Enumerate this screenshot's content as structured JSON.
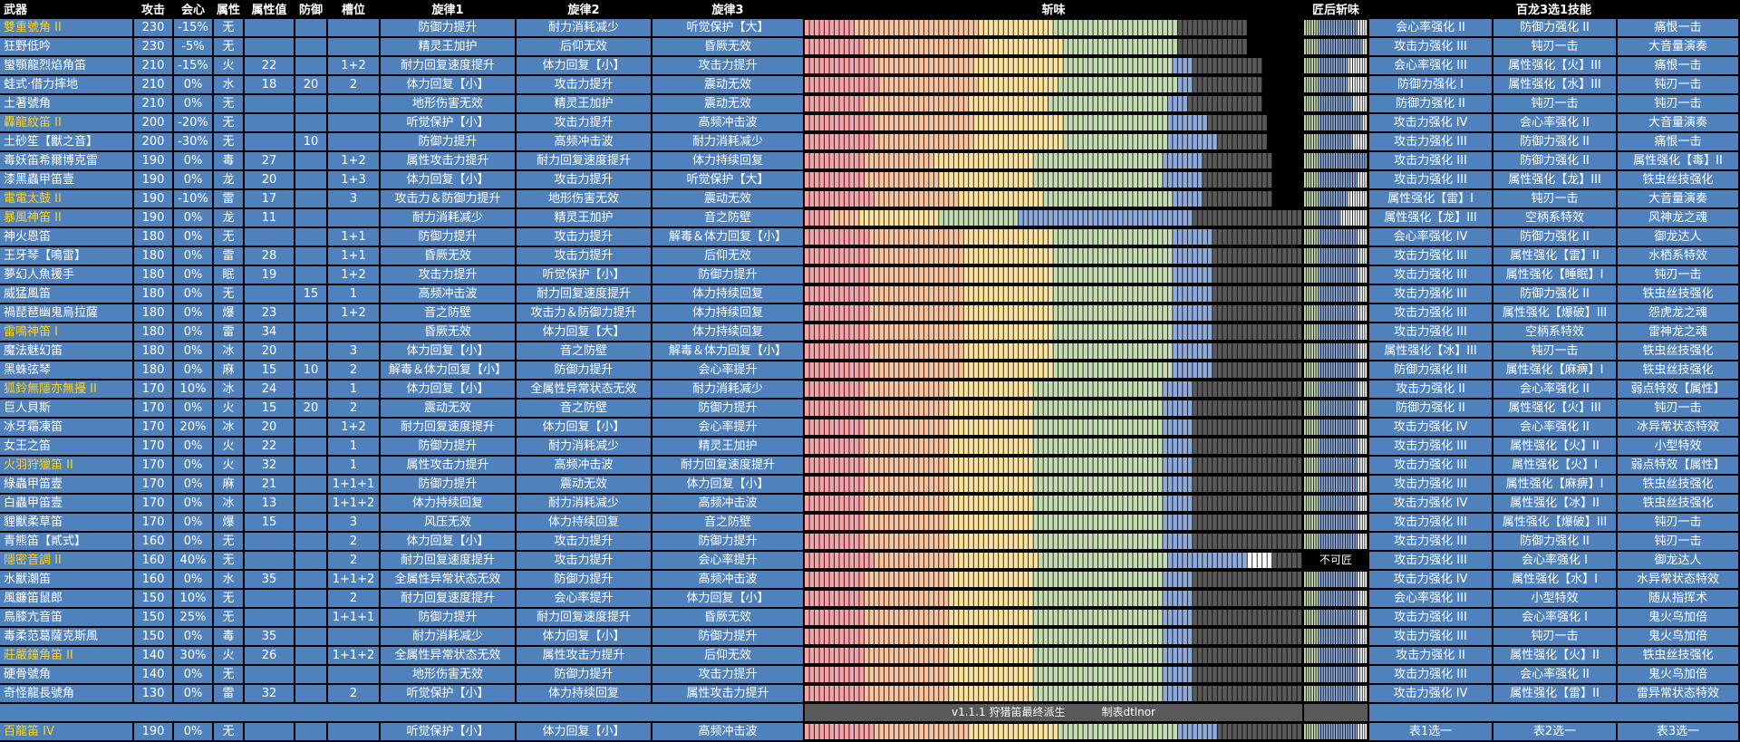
{
  "headers": {
    "weapon": "武器",
    "attack": "攻击",
    "affinity": "会心",
    "element": "属性",
    "element_value": "属性值",
    "defense": "防御",
    "slots": "槽位",
    "melody1": "旋律1",
    "melody2": "旋律2",
    "melody3": "旋律3",
    "sharpness": "斩味",
    "post_sharpness": "匠后斩味",
    "rampage": "百龙3选1技能"
  },
  "colors": {
    "cell_bg": "#4f81bd",
    "gold_name": "#ffd21f",
    "sharp_red": "#f4a3a8",
    "sharp_orange": "#f8c39f",
    "sharp_yellow": "#fbe29f",
    "sharp_green": "#c5dbb1",
    "sharp_blue": "#8eaadb",
    "sharp_white": "#ffffff",
    "sharp_empty": "#595959"
  },
  "rows": [
    {
      "name": "雙重號角 II",
      "gold": true,
      "atk": "230",
      "aff": "-15%",
      "ele": "无",
      "ev": "",
      "def": "",
      "slots": "",
      "m1": "防御力提升",
      "m2": "耐力消耗减少",
      "m3": "听觉保护【大】",
      "sharp": [
        10,
        25,
        15,
        25,
        0,
        0,
        14
      ],
      "post": "0.14,0.12,0,0,0,0",
      "r1": "会心率强化 II",
      "r2": "防御力强化 II",
      "r3": "痛恨一击"
    },
    {
      "name": "狂野低吟",
      "gold": false,
      "atk": "230",
      "aff": "-5%",
      "ele": "无",
      "ev": "",
      "def": "",
      "slots": "",
      "m1": "精灵王加护",
      "m2": "后仰无效",
      "m3": "昏厥无效",
      "sharp": [
        12,
        24,
        16,
        23,
        0,
        0,
        14
      ],
      "post": "0.15,0.11,0,0,0,0",
      "r1": "攻击力强化 III",
      "r2": "钝刃一击",
      "r3": "大音量演奏"
    },
    {
      "name": "蠻顎龍烈焰角笛",
      "gold": false,
      "atk": "210",
      "aff": "-15%",
      "ele": "火",
      "ev": "22",
      "def": "",
      "slots": "1+2",
      "m1": "耐力回复速度提升",
      "m2": "体力回复【小】",
      "m3": "攻击力提升",
      "sharp": [
        14,
        20,
        18,
        22,
        4,
        0,
        14
      ],
      "post": "0.10,0.14,0,0,0,0",
      "r1": "会心率强化 III",
      "r2": "属性强化【火】III",
      "r3": "痛恨一击"
    },
    {
      "name": "蛙式·借力摔地",
      "gold": false,
      "atk": "210",
      "aff": "0%",
      "ele": "水",
      "ev": "18",
      "def": "20",
      "slots": "2",
      "m1": "体力回复【小】",
      "m2": "攻击力提升",
      "m3": "震动无效",
      "sharp": [
        15,
        20,
        16,
        24,
        3,
        0,
        14
      ],
      "post": "0.10,0.14,0,0,0,0",
      "r1": "防御力强化 I",
      "r2": "属性强化【水】III",
      "r3": "钝刃一击"
    },
    {
      "name": "土著號角",
      "gold": false,
      "atk": "210",
      "aff": "0%",
      "ele": "无",
      "ev": "",
      "def": "",
      "slots": "",
      "m1": "地形伤害无效",
      "m2": "精灵王加护",
      "m3": "震动无效",
      "sharp": [
        12,
        21,
        16,
        24,
        4,
        0,
        15
      ],
      "post": "0.12,0.12,0,0,0,0",
      "r1": "防御力强化 II",
      "r2": "钝刃一击",
      "r3": "钝刃一击"
    },
    {
      "name": "轟龍紋笛 II",
      "gold": true,
      "atk": "200",
      "aff": "-20%",
      "ele": "无",
      "ev": "",
      "def": "",
      "slots": "",
      "m1": "听觉保护【小】",
      "m2": "攻击力提升",
      "m3": "高频冲击波",
      "sharp": [
        14,
        20,
        18,
        21,
        8,
        0,
        12
      ],
      "post": "0.15,0.11,0,0,0,0",
      "r1": "攻击力强化 IV",
      "r2": "会心率强化 II",
      "r3": "大音量演奏"
    },
    {
      "name": "土砂笙【獸之音】",
      "gold": false,
      "atk": "200",
      "aff": "-30%",
      "ele": "无",
      "ev": "",
      "def": "10",
      "slots": "",
      "m1": "防御力提升",
      "m2": "高频冲击波",
      "m3": "耐力消耗减少",
      "sharp": [
        14,
        20,
        18,
        21,
        10,
        0,
        10
      ],
      "post": "0.12,0.12,0,0,0,0",
      "r1": "攻击力强化 III",
      "r2": "防御力强化 II",
      "r3": "痛恨一击"
    },
    {
      "name": "毒妖笛希爾博克雷",
      "gold": false,
      "atk": "190",
      "aff": "0%",
      "ele": "毒",
      "ev": "27",
      "def": "",
      "slots": "1+2",
      "m1": "属性攻击力提升",
      "m2": "耐力回复速度提升",
      "m3": "体力持续回复",
      "sharp": [
        12,
        14,
        20,
        26,
        8,
        0,
        14
      ],
      "post": "0.17,0.09,0,0,0,0",
      "r1": "攻击力强化 III",
      "r2": "防御力强化 II",
      "r3": "属性强化【毒】II"
    },
    {
      "name": "漆黑蟲甲笛壹",
      "gold": false,
      "atk": "190",
      "aff": "0%",
      "ele": "龙",
      "ev": "20",
      "def": "",
      "slots": "1+3",
      "m1": "体力回复【小】",
      "m2": "攻击力提升",
      "m3": "听觉保护【大】",
      "sharp": [
        12,
        15,
        19,
        26,
        8,
        0,
        14
      ],
      "post": "0.14,0.12,0,0,0,0",
      "r1": "攻击力强化 III",
      "r2": "属性强化【龙】III",
      "r3": "铁虫丝技强化"
    },
    {
      "name": "電電太鼓 II",
      "gold": true,
      "atk": "190",
      "aff": "-10%",
      "ele": "雷",
      "ev": "17",
      "def": "",
      "slots": "3",
      "m1": "攻击力＆防御力提升",
      "m2": "地形伤害无效",
      "m3": "震动无效",
      "sharp": [
        14,
        17,
        17,
        26,
        6,
        0,
        14
      ],
      "post": "0.10,0.14,0,0,0,0",
      "r1": "属性强化【雷】I",
      "r2": "钝刃一击",
      "r3": "大音量演奏"
    },
    {
      "name": "暴風神笛 II",
      "gold": true,
      "atk": "190",
      "aff": "0%",
      "ele": "龙",
      "ev": "11",
      "def": "",
      "slots": "",
      "m1": "耐力消耗减少",
      "m2": "精灵王加护",
      "m3": "音之防壁",
      "sharp": [
        5,
        6,
        16,
        16,
        35,
        0,
        22
      ],
      "post": "0.08,0.16,0,0,0,0",
      "r1": "属性强化【龙】III",
      "r2": "空柄系特效",
      "r3": "风神龙之魂"
    },
    {
      "name": "神火恩笛",
      "gold": false,
      "atk": "180",
      "aff": "0%",
      "ele": "无",
      "ev": "",
      "def": "",
      "slots": "1+1",
      "m1": "防御力提升",
      "m2": "攻击力提升",
      "m3": "解毒＆体力回复【小】",
      "sharp": [
        13,
        19,
        18,
        24,
        8,
        0,
        18
      ],
      "post": "0.14,0.12,0,0,0,0",
      "r1": "会心率强化 IV",
      "r2": "防御力强化 II",
      "r3": "御龙达人"
    },
    {
      "name": "王牙琴【鳴雷】",
      "gold": false,
      "atk": "180",
      "aff": "0%",
      "ele": "雷",
      "ev": "28",
      "def": "",
      "slots": "1+1",
      "m1": "昏厥无效",
      "m2": "攻击力提升",
      "m3": "后仰无效",
      "sharp": [
        13,
        19,
        18,
        24,
        8,
        0,
        18
      ],
      "post": "0.14,0.12,0,0,0,0",
      "r1": "攻击力强化 III",
      "r2": "属性强化【雷】II",
      "r3": "水栖系特效"
    },
    {
      "name": "夢幻人魚援手",
      "gold": false,
      "atk": "180",
      "aff": "0%",
      "ele": "眠",
      "ev": "19",
      "def": "",
      "slots": "1+2",
      "m1": "攻击力提升",
      "m2": "听觉保护【小】",
      "m3": "防御力提升",
      "sharp": [
        13,
        19,
        18,
        24,
        8,
        0,
        18
      ],
      "post": "0.14,0.12,0,0,0,0",
      "r1": "攻击力强化 III",
      "r2": "属性强化【睡眠】I",
      "r3": "钝刃一击"
    },
    {
      "name": "威猛風笛",
      "gold": false,
      "atk": "180",
      "aff": "0%",
      "ele": "无",
      "ev": "",
      "def": "15",
      "slots": "1",
      "m1": "高频冲击波",
      "m2": "耐力回复速度提升",
      "m3": "体力持续回复",
      "sharp": [
        13,
        19,
        18,
        24,
        8,
        0,
        18
      ],
      "post": "0.14,0.12,0,0,0,0",
      "r1": "攻击力强化 III",
      "r2": "防御力强化 II",
      "r3": "铁虫丝技强化"
    },
    {
      "name": "禍琵琶幽鬼烏拉薩",
      "gold": false,
      "atk": "180",
      "aff": "0%",
      "ele": "爆",
      "ev": "23",
      "def": "",
      "slots": "1+2",
      "m1": "音之防壁",
      "m2": "攻击力＆防御力提升",
      "m3": "体力持续回复",
      "sharp": [
        13,
        19,
        18,
        24,
        8,
        0,
        18
      ],
      "post": "0.14,0.12,0,0,0,0",
      "r1": "攻击力强化 III",
      "r2": "属性强化【爆破】III",
      "r3": "怨虎龙之魂"
    },
    {
      "name": "雷鳴神笛 I",
      "gold": true,
      "atk": "180",
      "aff": "0%",
      "ele": "雷",
      "ev": "34",
      "def": "",
      "slots": "",
      "m1": "昏厥无效",
      "m2": "体力回复【大】",
      "m3": "体力持续回复",
      "sharp": [
        13,
        19,
        18,
        24,
        8,
        0,
        18
      ],
      "post": "0.14,0.12,0,0,0,0",
      "r1": "攻击力强化 III",
      "r2": "空柄系特效",
      "r3": "雷神龙之魂"
    },
    {
      "name": "魔法魅幻笛",
      "gold": false,
      "atk": "180",
      "aff": "0%",
      "ele": "冰",
      "ev": "20",
      "def": "",
      "slots": "3",
      "m1": "体力回复【小】",
      "m2": "音之防壁",
      "m3": "解毒＆体力回复【小】",
      "sharp": [
        13,
        19,
        18,
        24,
        8,
        0,
        18
      ],
      "post": "0.14,0.12,0,0,0,0",
      "r1": "属性强化【冰】III",
      "r2": "钝刃一击",
      "r3": "铁虫丝技强化"
    },
    {
      "name": "黑蛛弦琴",
      "gold": false,
      "atk": "180",
      "aff": "0%",
      "ele": "麻",
      "ev": "15",
      "def": "10",
      "slots": "2",
      "m1": "解毒＆体力回复【小】",
      "m2": "防御力提升",
      "m3": "会心率提升",
      "sharp": [
        13,
        19,
        18,
        24,
        8,
        0,
        18
      ],
      "post": "0.14,0.12,0,0,0,0",
      "r1": "防御力强化 III",
      "r2": "属性强化【麻痹】I",
      "r3": "铁虫丝技强化"
    },
    {
      "name": "狐鈴無隱亦無擾 II",
      "gold": true,
      "atk": "170",
      "aff": "10%",
      "ele": "冰",
      "ev": "24",
      "def": "",
      "slots": "1",
      "m1": "体力回复【小】",
      "m2": "全属性异常状态无效",
      "m3": "耐力消耗减少",
      "sharp": [
        12,
        17,
        17,
        26,
        6,
        0,
        22
      ],
      "post": "0.14,0.12,0,0,0,0",
      "r1": "攻击力强化 II",
      "r2": "会心率强化 II",
      "r3": "弱点特效【属性】"
    },
    {
      "name": "巨人貝斯",
      "gold": false,
      "atk": "170",
      "aff": "0%",
      "ele": "火",
      "ev": "15",
      "def": "20",
      "slots": "2",
      "m1": "震动无效",
      "m2": "音之防壁",
      "m3": "防御力提升",
      "sharp": [
        12,
        17,
        17,
        26,
        6,
        0,
        22
      ],
      "post": "0.14,0.12,0,0,0,0",
      "r1": "防御力强化 II",
      "r2": "属性强化【火】III",
      "r3": "钝刃一击"
    },
    {
      "name": "冰牙霜凍笛",
      "gold": false,
      "atk": "170",
      "aff": "20%",
      "ele": "冰",
      "ev": "20",
      "def": "",
      "slots": "1+2",
      "m1": "耐力回复速度提升",
      "m2": "体力回复【小】",
      "m3": "会心率提升",
      "sharp": [
        12,
        17,
        17,
        26,
        6,
        0,
        22
      ],
      "post": "0.14,0.12,0,0,0,0",
      "r1": "攻击力强化 IV",
      "r2": "会心率强化 II",
      "r3": "冰异常状态特效"
    },
    {
      "name": "女王之笛",
      "gold": false,
      "atk": "170",
      "aff": "0%",
      "ele": "火",
      "ev": "22",
      "def": "",
      "slots": "1",
      "m1": "防御力提升",
      "m2": "耐力消耗减少",
      "m3": "精灵王加护",
      "sharp": [
        12,
        17,
        17,
        26,
        6,
        0,
        22
      ],
      "post": "0.14,0.12,0,0,0,0",
      "r1": "攻击力强化 III",
      "r2": "属性强化【火】II",
      "r3": "小型特效"
    },
    {
      "name": "火羽狩獵笛 II",
      "gold": true,
      "atk": "170",
      "aff": "0%",
      "ele": "火",
      "ev": "32",
      "def": "",
      "slots": "1",
      "m1": "属性攻击力提升",
      "m2": "高频冲击波",
      "m3": "耐力回复速度提升",
      "sharp": [
        12,
        17,
        17,
        26,
        6,
        0,
        22
      ],
      "post": "0.14,0.12,0,0,0,0",
      "r1": "攻击力强化 III",
      "r2": "属性强化【火】I",
      "r3": "弱点特效【属性】"
    },
    {
      "name": "綠蟲甲笛壹",
      "gold": false,
      "atk": "170",
      "aff": "0%",
      "ele": "麻",
      "ev": "21",
      "def": "",
      "slots": "1+1+1",
      "m1": "防御力提升",
      "m2": "震动无效",
      "m3": "体力回复【小】",
      "sharp": [
        12,
        17,
        17,
        26,
        6,
        0,
        22
      ],
      "post": "0.14,0.12,0,0,0,0",
      "r1": "攻击力强化 III",
      "r2": "属性强化【麻痹】I",
      "r3": "铁虫丝技强化"
    },
    {
      "name": "白蟲甲笛壹",
      "gold": false,
      "atk": "170",
      "aff": "0%",
      "ele": "冰",
      "ev": "13",
      "def": "",
      "slots": "1+1+2",
      "m1": "体力持续回复",
      "m2": "耐力消耗减少",
      "m3": "高频冲击波",
      "sharp": [
        12,
        17,
        17,
        26,
        6,
        0,
        22
      ],
      "post": "0.14,0.12,0,0,0,0",
      "r1": "攻击力强化 IV",
      "r2": "属性强化【冰】II",
      "r3": "铁虫丝技强化"
    },
    {
      "name": "貍獸柔草笛",
      "gold": false,
      "atk": "170",
      "aff": "0%",
      "ele": "爆",
      "ev": "15",
      "def": "",
      "slots": "3",
      "m1": "风压无效",
      "m2": "体力持续回复",
      "m3": "音之防壁",
      "sharp": [
        12,
        17,
        17,
        26,
        6,
        0,
        22
      ],
      "post": "0.14,0.12,0,0,0,0",
      "r1": "攻击力强化 III",
      "r2": "属性强化【爆破】III",
      "r3": "钝刃一击"
    },
    {
      "name": "青熊笛【貳式】",
      "gold": false,
      "atk": "160",
      "aff": "0%",
      "ele": "无",
      "ev": "",
      "def": "",
      "slots": "2",
      "m1": "体力回复【小】",
      "m2": "攻击力提升",
      "m3": "防御力提升",
      "sharp": [
        12,
        17,
        17,
        26,
        6,
        0,
        22
      ],
      "post": "0.14,0.12,0,0,0,0",
      "r1": "攻击力强化 III",
      "r2": "防御力强化 II",
      "r3": "钝刃一击"
    },
    {
      "name": "隱密音調 II",
      "gold": true,
      "atk": "160",
      "aff": "40%",
      "ele": "无",
      "ev": "",
      "def": "",
      "slots": "2",
      "m1": "耐力回复速度提升",
      "m2": "攻击力提升",
      "m3": "会心率提升",
      "sharp": [
        14,
        16,
        17,
        26,
        16,
        5,
        6
      ],
      "post": "nocraft",
      "r1": "攻击力强化 III",
      "r2": "会心率强化 I",
      "r3": "御龙达人"
    },
    {
      "name": "水獸潮笛",
      "gold": false,
      "atk": "160",
      "aff": "0%",
      "ele": "水",
      "ev": "35",
      "def": "",
      "slots": "1+1+2",
      "m1": "全属性异常状态无效",
      "m2": "防御力提升",
      "m3": "高频冲击波",
      "sharp": [
        12,
        17,
        17,
        26,
        6,
        0,
        22
      ],
      "post": "0.14,0.12,0,0,0,0",
      "r1": "攻击力强化 IV",
      "r2": "属性强化【水】I",
      "r3": "水异常状态特效"
    },
    {
      "name": "風鐮笛鼠郎",
      "gold": false,
      "atk": "150",
      "aff": "10%",
      "ele": "无",
      "ev": "",
      "def": "",
      "slots": "2",
      "m1": "耐力回复速度提升",
      "m2": "会心率提升",
      "m3": "体力回复【小】",
      "sharp": [
        12,
        17,
        17,
        26,
        6,
        0,
        22
      ],
      "post": "0.14,0.12,0,0,0,0",
      "r1": "会心率强化 III",
      "r2": "小型特效",
      "r3": "随从指挥术"
    },
    {
      "name": "鳥膝亢音笛",
      "gold": false,
      "atk": "150",
      "aff": "25%",
      "ele": "无",
      "ev": "",
      "def": "",
      "slots": "1+1+1",
      "m1": "防御力提升",
      "m2": "耐力回复速度提升",
      "m3": "昏厥无效",
      "sharp": [
        12,
        17,
        17,
        26,
        6,
        0,
        22
      ],
      "post": "0.14,0.12,0,0,0,0",
      "r1": "攻击力强化 III",
      "r2": "会心率强化 I",
      "r3": "鬼火鸟加倍"
    },
    {
      "name": "毒柔范葛薩克斯風",
      "gold": false,
      "atk": "150",
      "aff": "0%",
      "ele": "毒",
      "ev": "35",
      "def": "",
      "slots": "",
      "m1": "耐力消耗减少",
      "m2": "体力回复【小】",
      "m3": "防御力提升",
      "sharp": [
        12,
        17,
        17,
        26,
        6,
        0,
        22
      ],
      "post": "0.14,0.12,0,0,0,0",
      "r1": "攻击力强化 III",
      "r2": "钝刃一击",
      "r3": "鬼火鸟加倍"
    },
    {
      "name": "莊嚴鐘角笛 II",
      "gold": true,
      "atk": "140",
      "aff": "30%",
      "ele": "火",
      "ev": "26",
      "def": "",
      "slots": "1+1+2",
      "m1": "全属性异常状态无效",
      "m2": "属性攻击力提升",
      "m3": "后仰无效",
      "sharp": [
        12,
        17,
        17,
        26,
        6,
        0,
        22
      ],
      "post": "0.14,0.12,0,0,0,0",
      "r1": "攻击力强化 II",
      "r2": "属性强化【火】II",
      "r3": "铁虫丝技强化"
    },
    {
      "name": "硬骨號角",
      "gold": false,
      "atk": "140",
      "aff": "0%",
      "ele": "无",
      "ev": "",
      "def": "",
      "slots": "",
      "m1": "地形伤害无效",
      "m2": "防御力提升",
      "m3": "攻击力提升",
      "sharp": [
        12,
        17,
        17,
        26,
        6,
        0,
        22
      ],
      "post": "0.14,0.12,0,0,0,0",
      "r1": "攻击力强化 III",
      "r2": "会心率强化 II",
      "r3": "鬼火鸟加倍"
    },
    {
      "name": "奇怪龍長號角",
      "gold": false,
      "atk": "130",
      "aff": "0%",
      "ele": "雷",
      "ev": "32",
      "def": "",
      "slots": "2",
      "m1": "听觉保护【小】",
      "m2": "体力持续回复",
      "m3": "属性攻击力提升",
      "sharp": [
        12,
        17,
        17,
        26,
        6,
        0,
        22
      ],
      "post": "0.14,0.12,0,0,0,0",
      "r1": "攻击力强化 IV",
      "r2": "属性强化【雷】II",
      "r3": "雷异常状态特效"
    }
  ],
  "info": {
    "version": "v1.1.1 狩猎笛最终派生",
    "author": "制表dtlnor"
  },
  "footer": {
    "name": "百龍笛 IV",
    "atk": "190",
    "aff": "0%",
    "ele": "无",
    "ev": "",
    "def": "",
    "slots": "",
    "m1": "听觉保护【小】",
    "m2": "体力回复【小】",
    "m3": "高频冲击波",
    "sharp": [
      14,
      19,
      18,
      24,
      8,
      0,
      17
    ],
    "r1": "表1选一",
    "r2": "表2选一",
    "r3": "表3选一"
  },
  "nocraft_label": "不可匠"
}
